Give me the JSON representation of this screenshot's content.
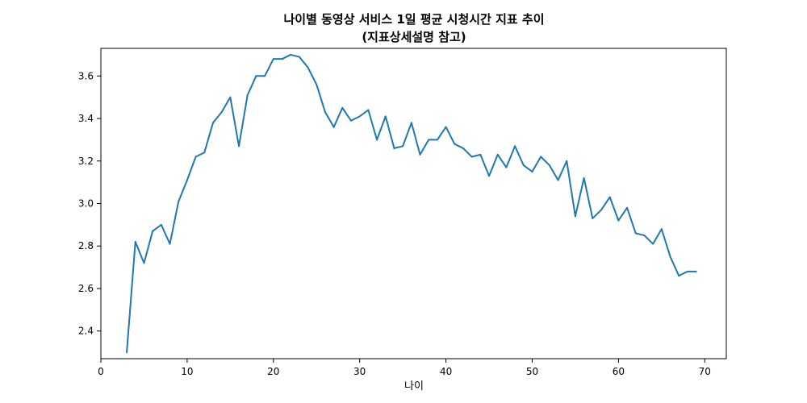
{
  "chart_data": {
    "type": "line",
    "title": "나이별 동영상 서비스 1일 평균 시청시간 지표 추이",
    "subtitle": "(지표상세설명 참고)",
    "xlabel": "나이",
    "ylabel": "",
    "xlim": [
      0,
      72.5
    ],
    "ylim": [
      2.27,
      3.73
    ],
    "xticks": [
      0,
      10,
      20,
      30,
      40,
      50,
      60,
      70
    ],
    "yticks": [
      2.4,
      2.6,
      2.8,
      3.0,
      3.2,
      3.4,
      3.6
    ],
    "grid": false,
    "line_color": "#1f77b4",
    "series": [
      {
        "x": [
          3,
          4,
          5,
          6,
          7,
          8,
          9,
          10,
          11,
          12,
          13,
          14,
          15,
          16,
          17,
          18,
          19,
          20,
          21,
          22,
          23,
          24,
          25,
          26,
          27,
          28,
          29,
          30,
          31,
          32,
          33,
          34,
          35,
          36,
          37,
          38,
          39,
          40,
          41,
          42,
          43,
          44,
          45,
          46,
          47,
          48,
          49,
          50,
          51,
          52,
          53,
          54,
          55,
          56,
          57,
          58,
          59,
          60,
          61,
          62,
          63,
          64,
          65,
          66,
          67,
          68,
          69
        ],
        "values": [
          2.3,
          2.82,
          2.72,
          2.87,
          2.9,
          2.81,
          3.01,
          3.11,
          3.22,
          3.24,
          3.38,
          3.43,
          3.5,
          3.27,
          3.51,
          3.6,
          3.6,
          3.68,
          3.68,
          3.7,
          3.69,
          3.64,
          3.56,
          3.43,
          3.36,
          3.45,
          3.39,
          3.41,
          3.44,
          3.3,
          3.41,
          3.26,
          3.27,
          3.38,
          3.23,
          3.3,
          3.3,
          3.36,
          3.28,
          3.26,
          3.22,
          3.23,
          3.13,
          3.23,
          3.17,
          3.27,
          3.18,
          3.15,
          3.22,
          3.18,
          3.11,
          3.2,
          2.94,
          3.12,
          2.93,
          2.97,
          3.03,
          2.92,
          2.98,
          2.86,
          2.85,
          2.81,
          2.88,
          2.75,
          2.66,
          2.68,
          2.68
        ]
      }
    ]
  }
}
